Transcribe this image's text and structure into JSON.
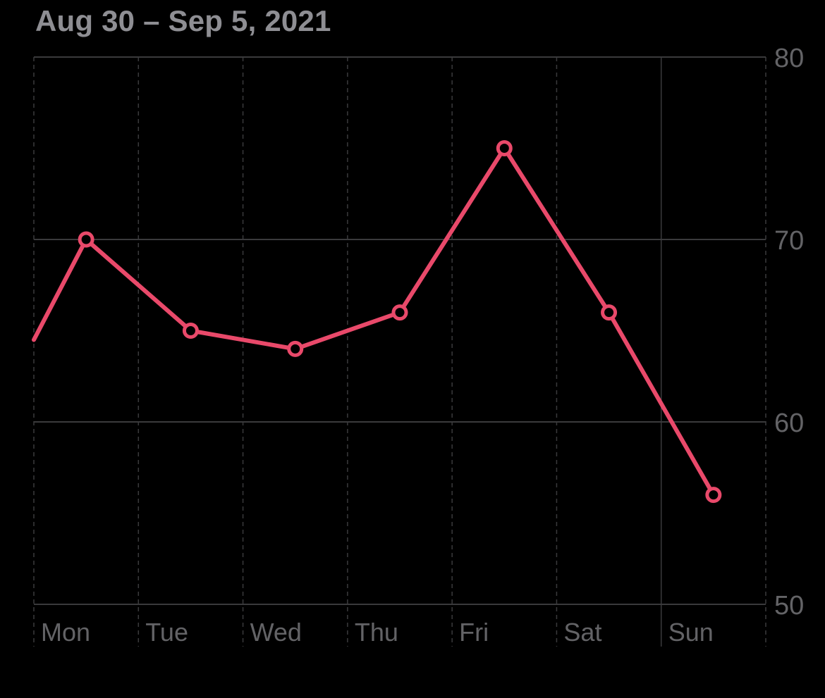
{
  "header": {
    "date_range": "Aug 30 – Sep 5, 2021"
  },
  "colors": {
    "background": "#000000",
    "line": "#e9496a",
    "grid": "#3a3a3c",
    "axis_text": "#636366",
    "title_text": "#8e8e93"
  },
  "chart_data": {
    "type": "line",
    "title": "",
    "xlabel": "",
    "ylabel": "",
    "categories": [
      "Mon",
      "Tue",
      "Wed",
      "Thu",
      "Fri",
      "Sat",
      "Sun"
    ],
    "y_axis_position": "right",
    "ylim": [
      50,
      80
    ],
    "yticks": [
      50,
      60,
      70,
      80
    ],
    "grid": true,
    "series": [
      {
        "points": [
          {
            "x": "Mon",
            "y": 70
          },
          {
            "x": "Tue",
            "y": 65
          },
          {
            "x": "Wed",
            "y": 64
          },
          {
            "x": "Thu",
            "y": 66
          },
          {
            "x": "Fri",
            "y": 75
          },
          {
            "x": "Sat",
            "y": 66
          },
          {
            "x": "Sun",
            "y": 56
          }
        ],
        "line_enters_from_left_at": 64.5
      }
    ]
  }
}
